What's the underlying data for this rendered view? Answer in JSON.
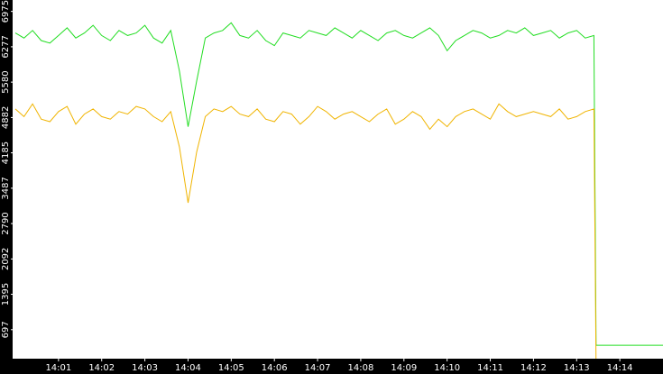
{
  "chart_data": {
    "type": "line",
    "x": [
      0,
      0.2,
      0.4,
      0.6,
      0.8,
      1,
      1.2,
      1.4,
      1.6,
      1.8,
      2,
      2.2,
      2.4,
      2.6,
      2.8,
      3,
      3.2,
      3.4,
      3.6,
      3.8,
      4,
      4.2,
      4.4,
      4.6,
      4.8,
      5,
      5.2,
      5.4,
      5.6,
      5.8,
      6,
      6.2,
      6.4,
      6.6,
      6.8,
      7,
      7.2,
      7.4,
      7.6,
      7.8,
      8,
      8.2,
      8.4,
      8.6,
      8.8,
      9,
      9.2,
      9.4,
      9.6,
      9.8,
      10,
      10.2,
      10.4,
      10.6,
      10.8,
      11,
      11.2,
      11.4,
      11.6,
      11.8,
      12,
      12.2,
      12.4,
      12.6,
      12.8,
      13,
      13.2,
      13.4,
      13.45,
      13.6,
      15
    ],
    "series": [
      {
        "color": "#22dd22",
        "values": [
          6550,
          6450,
          6600,
          6400,
          6350,
          6500,
          6650,
          6450,
          6550,
          6700,
          6500,
          6400,
          6600,
          6500,
          6550,
          6700,
          6450,
          6350,
          6600,
          5800,
          4700,
          5600,
          6450,
          6550,
          6600,
          6750,
          6500,
          6450,
          6600,
          6400,
          6300,
          6550,
          6500,
          6450,
          6600,
          6550,
          6500,
          6650,
          6550,
          6450,
          6600,
          6500,
          6400,
          6550,
          6600,
          6500,
          6450,
          6550,
          6650,
          6500,
          6200,
          6400,
          6500,
          6600,
          6550,
          6450,
          6500,
          6600,
          6550,
          6650,
          6500,
          6550,
          6600,
          6450,
          6550,
          6600,
          6450,
          6500,
          390,
          390,
          390
        ]
      },
      {
        "color": "#f0b400",
        "values": [
          5050,
          4900,
          5150,
          4850,
          4800,
          5000,
          5100,
          4750,
          4950,
          5050,
          4900,
          4850,
          5000,
          4950,
          5100,
          5050,
          4900,
          4800,
          5000,
          4300,
          3200,
          4200,
          4900,
          5050,
          5000,
          5100,
          4950,
          4900,
          5050,
          4850,
          4800,
          5000,
          4950,
          4750,
          4900,
          5100,
          5000,
          4850,
          4950,
          5000,
          4900,
          4800,
          4950,
          5050,
          4750,
          4850,
          5000,
          4900,
          4650,
          4850,
          4700,
          4900,
          5000,
          5050,
          4950,
          4850,
          5150,
          5000,
          4900,
          4950,
          5000,
          4950,
          4900,
          5050,
          4850,
          4900,
          5000,
          5050,
          0,
          null,
          null
        ]
      }
    ],
    "xlim": [
      0,
      15
    ],
    "xticks": [
      {
        "value": 1,
        "label": "14:01"
      },
      {
        "value": 2,
        "label": "14:02"
      },
      {
        "value": 3,
        "label": "14:03"
      },
      {
        "value": 4,
        "label": "14:04"
      },
      {
        "value": 5,
        "label": "14:05"
      },
      {
        "value": 6,
        "label": "14:06"
      },
      {
        "value": 7,
        "label": "14:07"
      },
      {
        "value": 8,
        "label": "14:08"
      },
      {
        "value": 9,
        "label": "14:09"
      },
      {
        "value": 10,
        "label": "14:10"
      },
      {
        "value": 11,
        "label": "14:11"
      },
      {
        "value": 12,
        "label": "14:12"
      },
      {
        "value": 13,
        "label": "14:13"
      },
      {
        "value": 14,
        "label": "14:14"
      }
    ],
    "ylim": [
      0,
      7200
    ],
    "yticks": [
      697,
      1395,
      2092,
      2790,
      3487,
      4185,
      4882,
      5580,
      6277,
      6975
    ]
  }
}
